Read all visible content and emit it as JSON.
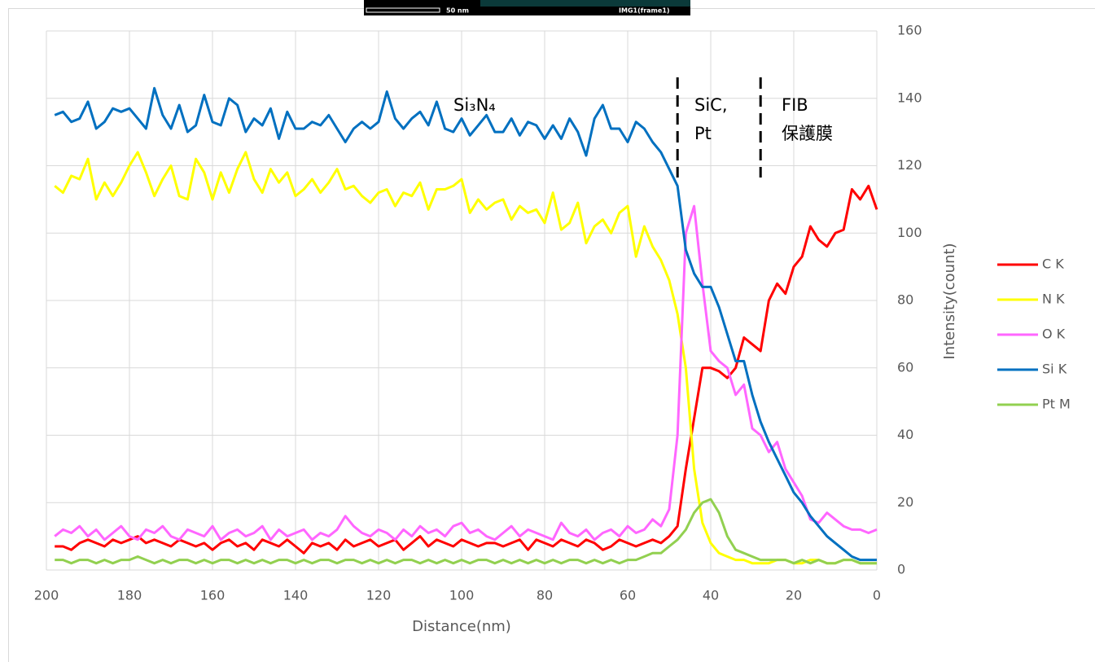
{
  "image_strip": {
    "scale_label": "50 nm",
    "frame_label": "IMG1(frame1)"
  },
  "chart_data": {
    "type": "line",
    "x_label": "Distance(nm)",
    "y_label": "Intensity(count)",
    "xlim": [
      200,
      0
    ],
    "xticks": [
      200,
      180,
      160,
      140,
      120,
      100,
      80,
      60,
      40,
      20,
      0
    ],
    "ylim": [
      0,
      160
    ],
    "yticks": [
      0,
      20,
      40,
      60,
      80,
      100,
      120,
      140,
      160
    ],
    "grid": true,
    "legend": "right",
    "annotations": [
      {
        "lines": [
          "Si₃N₄"
        ]
      },
      {
        "lines": [
          "SiC,",
          "Pt"
        ]
      },
      {
        "lines": [
          "FIB",
          "保護膜"
        ]
      }
    ],
    "boundaries": [
      48,
      28
    ],
    "x": [
      198,
      196,
      194,
      192,
      190,
      188,
      186,
      184,
      182,
      180,
      178,
      176,
      174,
      172,
      170,
      168,
      166,
      164,
      162,
      160,
      158,
      156,
      154,
      152,
      150,
      148,
      146,
      144,
      142,
      140,
      138,
      136,
      134,
      132,
      130,
      128,
      126,
      124,
      122,
      120,
      118,
      116,
      114,
      112,
      110,
      108,
      106,
      104,
      102,
      100,
      98,
      96,
      94,
      92,
      90,
      88,
      86,
      84,
      82,
      80,
      78,
      76,
      74,
      72,
      70,
      68,
      66,
      64,
      62,
      60,
      58,
      56,
      54,
      52,
      50,
      48,
      46,
      44,
      42,
      40,
      38,
      36,
      34,
      32,
      30,
      28,
      26,
      24,
      22,
      20,
      18,
      16,
      14,
      12,
      10,
      8,
      6,
      4,
      2,
      0
    ],
    "series": [
      {
        "name": "C K",
        "color": "#ff0000",
        "values": [
          7,
          7,
          6,
          8,
          9,
          8,
          7,
          9,
          8,
          9,
          10,
          8,
          9,
          8,
          7,
          9,
          8,
          7,
          8,
          6,
          8,
          9,
          7,
          8,
          6,
          9,
          8,
          7,
          9,
          7,
          5,
          8,
          7,
          8,
          6,
          9,
          7,
          8,
          9,
          7,
          8,
          9,
          6,
          8,
          10,
          7,
          9,
          8,
          7,
          9,
          8,
          7,
          8,
          8,
          7,
          8,
          9,
          6,
          9,
          8,
          7,
          9,
          8,
          7,
          9,
          8,
          6,
          7,
          9,
          8,
          7,
          8,
          9,
          8,
          10,
          13,
          30,
          45,
          60,
          60,
          59,
          57,
          60,
          69,
          67,
          65,
          80,
          85,
          82,
          90,
          93,
          102,
          98,
          96,
          100,
          101,
          113,
          110,
          114,
          107
        ]
      },
      {
        "name": "N K",
        "color": "#ffff00",
        "values": [
          114,
          112,
          117,
          116,
          122,
          110,
          115,
          111,
          115,
          120,
          124,
          118,
          111,
          116,
          120,
          111,
          110,
          122,
          118,
          110,
          118,
          112,
          119,
          124,
          116,
          112,
          119,
          115,
          118,
          111,
          113,
          116,
          112,
          115,
          119,
          113,
          114,
          111,
          109,
          112,
          113,
          108,
          112,
          111,
          115,
          107,
          113,
          113,
          114,
          116,
          106,
          110,
          107,
          109,
          110,
          104,
          108,
          106,
          107,
          103,
          112,
          101,
          103,
          109,
          97,
          102,
          104,
          100,
          106,
          108,
          93,
          102,
          96,
          92,
          86,
          76,
          60,
          30,
          14,
          8,
          5,
          4,
          3,
          3,
          2,
          2,
          2,
          3,
          3,
          2,
          2,
          3,
          3,
          2,
          2,
          3,
          3,
          2,
          2,
          2
        ]
      },
      {
        "name": "O K",
        "color": "#ff66ff",
        "values": [
          10,
          12,
          11,
          13,
          10,
          12,
          9,
          11,
          13,
          10,
          9,
          12,
          11,
          13,
          10,
          9,
          12,
          11,
          10,
          13,
          9,
          11,
          12,
          10,
          11,
          13,
          9,
          12,
          10,
          11,
          12,
          9,
          11,
          10,
          12,
          16,
          13,
          11,
          10,
          12,
          11,
          9,
          12,
          10,
          13,
          11,
          12,
          10,
          13,
          14,
          11,
          12,
          10,
          9,
          11,
          13,
          10,
          12,
          11,
          10,
          9,
          14,
          11,
          10,
          12,
          9,
          11,
          12,
          10,
          13,
          11,
          12,
          15,
          13,
          18,
          40,
          100,
          108,
          85,
          65,
          62,
          60,
          52,
          55,
          42,
          40,
          35,
          38,
          30,
          26,
          22,
          15,
          14,
          17,
          15,
          13,
          12,
          12,
          11,
          12
        ]
      },
      {
        "name": "Si K",
        "color": "#0070c0",
        "values": [
          135,
          136,
          133,
          134,
          139,
          131,
          133,
          137,
          136,
          137,
          134,
          131,
          143,
          135,
          131,
          138,
          130,
          132,
          141,
          133,
          132,
          140,
          138,
          130,
          134,
          132,
          137,
          128,
          136,
          131,
          131,
          133,
          132,
          135,
          131,
          127,
          131,
          133,
          131,
          133,
          142,
          134,
          131,
          134,
          136,
          132,
          139,
          131,
          130,
          134,
          129,
          132,
          135,
          130,
          130,
          134,
          129,
          133,
          132,
          128,
          132,
          128,
          134,
          130,
          123,
          134,
          138,
          131,
          131,
          127,
          133,
          131,
          127,
          124,
          119,
          114,
          95,
          88,
          84,
          84,
          78,
          70,
          62,
          62,
          52,
          44,
          38,
          33,
          28,
          23,
          20,
          16,
          13,
          10,
          8,
          6,
          4,
          3,
          3,
          3
        ]
      },
      {
        "name": "Pt M",
        "color": "#92d050",
        "values": [
          3,
          3,
          2,
          3,
          3,
          2,
          3,
          2,
          3,
          3,
          4,
          3,
          2,
          3,
          2,
          3,
          3,
          2,
          3,
          2,
          3,
          3,
          2,
          3,
          2,
          3,
          2,
          3,
          3,
          2,
          3,
          2,
          3,
          3,
          2,
          3,
          3,
          2,
          3,
          2,
          3,
          2,
          3,
          3,
          2,
          3,
          2,
          3,
          2,
          3,
          2,
          3,
          3,
          2,
          3,
          2,
          3,
          2,
          3,
          2,
          3,
          2,
          3,
          3,
          2,
          3,
          2,
          3,
          2,
          3,
          3,
          4,
          5,
          5,
          7,
          9,
          12,
          17,
          20,
          21,
          17,
          10,
          6,
          5,
          4,
          3,
          3,
          3,
          3,
          2,
          3,
          2,
          3,
          2,
          2,
          3,
          3,
          2,
          2,
          2
        ]
      }
    ]
  }
}
